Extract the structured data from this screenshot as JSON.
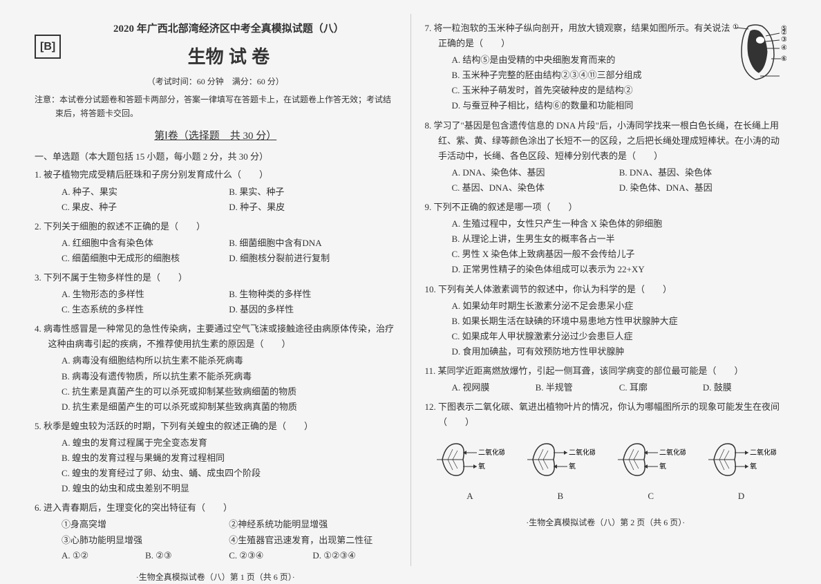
{
  "header": {
    "title_main": "2020 年广西北部湾经济区中考全真模拟试题（八）",
    "label_B": "[B]",
    "title_sub": "生物 试 卷",
    "exam_info": "（考试时间：60 分钟　满分：60 分）",
    "notice": "注意：本试卷分试题卷和答题卡两部分，答案一律填写在答题卡上，在试题卷上作答无效；考试结束后，将答题卡交回。",
    "section1": "第Ⅰ卷（选择题　共 30 分）",
    "instruction1": "一、单选题（本大题包括 15 小题，每小题 2 分，共 30 分）"
  },
  "questions_left": [
    {
      "n": "1.",
      "stem": "被子植物完成受精后胚珠和子房分别发育成什么（　　）",
      "layout": "two-col",
      "opts": [
        "A. 种子、果实",
        "B. 果实、种子",
        "C. 果皮、种子",
        "D. 种子、果皮"
      ]
    },
    {
      "n": "2.",
      "stem": "下列关于细胞的叙述不正确的是（　　）",
      "layout": "two-col",
      "opts": [
        "A. 红细胞中含有染色体",
        "B. 细菌细胞中含有DNA",
        "C. 细菌细胞中无成形的细胞核",
        "D. 细胞核分裂前进行复制"
      ]
    },
    {
      "n": "3.",
      "stem": "下列不属于生物多样性的是（　　）",
      "layout": "two-col",
      "opts": [
        "A. 生物形态的多样性",
        "B. 生物种类的多样性",
        "C. 生态系统的多样性",
        "D. 基因的多样性"
      ]
    },
    {
      "n": "4.",
      "stem": "病毒性感冒是一种常见的急性传染病，主要通过空气飞沫或接触途径由病原体传染，治疗这种由病毒引起的疾病，不推荐使用抗生素的原因是（　　）",
      "layout": "one-col",
      "opts": [
        "A. 病毒没有细胞结构所以抗生素不能杀死病毒",
        "B. 病毒没有遗传物质，所以抗生素不能杀死病毒",
        "C. 抗生素是真菌产生的可以杀死或抑制某些致病细菌的物质",
        "D. 抗生素是细菌产生的可以杀死或抑制某些致病真菌的物质"
      ]
    },
    {
      "n": "5.",
      "stem": "秋季是蝗虫较为活跃的时期，下列有关蝗虫的叙述正确的是（　　）",
      "layout": "one-col",
      "opts": [
        "A. 蝗虫的发育过程属于完全变态发育",
        "B. 蝗虫的发育过程与果蝇的发育过程相同",
        "C. 蝗虫的发育经过了卵、幼虫、蛹、成虫四个阶段",
        "D. 蝗虫的幼虫和成虫差别不明显"
      ]
    },
    {
      "n": "6.",
      "stem": "进入青春期后，生理变化的突出特征有（　　）",
      "items": [
        "①身高突增",
        "②神经系统功能明显增强",
        "③心肺功能明显增强",
        "④生殖器官迅速发育，出现第二性征"
      ],
      "layout": "four-col",
      "opts": [
        "A. ①②",
        "B. ②③",
        "C. ②③④",
        "D. ①②③④"
      ]
    }
  ],
  "questions_right": [
    {
      "n": "7.",
      "stem": "将一粒泡软的玉米种子纵向剖开，用放大镜观察，结果如图所示。有关说法正确的是（　　）",
      "layout": "one-col",
      "opts": [
        "A. 结构⑤是由受精的中央细胞发育而来的",
        "B. 玉米种子完整的胚由结构②③④⑪三部分组成",
        "C. 玉米种子萌发时，首先突破种皮的是结构②",
        "D. 与蚕豆种子相比，结构⑥的数量和功能相同"
      ],
      "has_seed": true,
      "seed_labels": [
        "①",
        "②",
        "③",
        "④",
        "⑤",
        "⑥"
      ]
    },
    {
      "n": "8.",
      "stem": "学习了\"基因是包含遗传信息的 DNA 片段\"后，小涛同学找来一根白色长绳，在长绳上用红、紫、黄、绿等颜色涂出了长短不一的区段，之后把长绳处理成短棒状。在小涛的动手活动中，长绳、各色区段、短棒分别代表的是（　　）",
      "layout": "two-col",
      "opts": [
        "A. DNA、染色体、基因",
        "B. DNA、基因、染色体",
        "C. 基因、DNA、染色体",
        "D. 染色体、DNA、基因"
      ]
    },
    {
      "n": "9.",
      "stem": "下列不正确的叙述是哪一项（　　）",
      "layout": "one-col",
      "opts": [
        "A. 生殖过程中，女性只产生一种含 X 染色体的卵细胞",
        "B. 从理论上讲，生男生女的概率各占一半",
        "C. 男性 X 染色体上致病基因一般不会传给儿子",
        "D. 正常男性精子的染色体组成可以表示为 22+XY"
      ]
    },
    {
      "n": "10.",
      "stem": "下列有关人体激素调节的叙述中，你认为科学的是（　　）",
      "layout": "one-col",
      "opts": [
        "A. 如果幼年时期生长激素分泌不足会患呆小症",
        "B. 如果长期生活在缺碘的环境中易患地方性甲状腺肿大症",
        "C. 如果成年人甲状腺激素分泌过少会患巨人症",
        "D. 食用加碘盐，可有效预防地方性甲状腺肿"
      ]
    },
    {
      "n": "11.",
      "stem": "某同学近距离燃放爆竹，引起一侧耳聋，该同学病变的部位最可能是（　　）",
      "layout": "four-col",
      "opts": [
        "A. 视网膜",
        "B. 半规管",
        "C. 耳廓",
        "D. 鼓膜"
      ]
    },
    {
      "n": "12.",
      "stem": "下图表示二氧化碳、氧进出植物叶片的情况，你认为哪幅图所示的现象可能发生在夜间（　　）",
      "leaves": [
        {
          "label": "A",
          "top": "二氧化碳",
          "bot": "氧"
        },
        {
          "label": "B",
          "top": "二氧化碳",
          "bot": "氧"
        },
        {
          "label": "C",
          "top": "二氧化碳",
          "bot": "氧"
        },
        {
          "label": "D",
          "top": "二氧化碳",
          "bot": "氧"
        }
      ]
    }
  ],
  "footer_left": "·生物全真模拟试卷（八）第 1 页（共 6 页）·",
  "footer_right": "·生物全真模拟试卷（八）第 2 页（共 6 页）·"
}
